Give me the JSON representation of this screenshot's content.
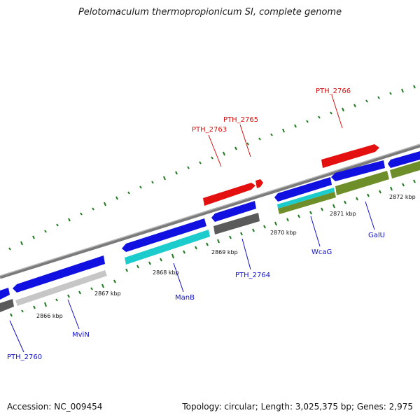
{
  "title": "Pelotomaculum thermopropionicum SI, complete genome",
  "footer": {
    "accession": "Accession: NC_009454",
    "topology": "Topology: circular; Length: 3,025,375 bp; Genes: 2,975"
  },
  "colors": {
    "strand_blue": "#1010e0",
    "highlight_red": "#e41010",
    "cyan": "#1ccccc",
    "light_gray": "#c6c6c6",
    "dark_gray": "#5a5a5a",
    "olive": "#6e8e2a",
    "tick_green": "#1e7a1e",
    "backbone": "#8a8a8a",
    "label_blue": "#1010c8",
    "label_red": "#d81010"
  },
  "kbp_labels": [
    "2866 kbp",
    "2867 kbp",
    "2868 kbp",
    "2869 kbp",
    "2870 kbp",
    "2871 kbp",
    "2872 kbp"
  ],
  "gene_labels": {
    "pth_2760": "PTH_2760",
    "mvin": "MviN",
    "manb": "ManB",
    "pth_2764": "PTH_2764",
    "wcag": "WcaG",
    "galu": "GalU",
    "pth_2763": "PTH_2763",
    "pth_2765": "PTH_2765",
    "pth_2766": "PTH_2766"
  }
}
